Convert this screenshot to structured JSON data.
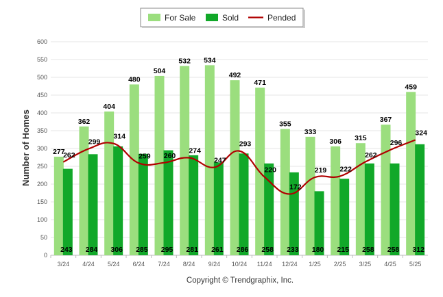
{
  "chart_data": {
    "type": "bar",
    "categories": [
      "3/24",
      "4/24",
      "5/24",
      "6/24",
      "7/24",
      "8/24",
      "9/24",
      "10/24",
      "11/24",
      "12/24",
      "1/25",
      "2/25",
      "3/25",
      "4/25",
      "5/25"
    ],
    "series": [
      {
        "name": "For Sale",
        "type": "bar",
        "color": "#9bde7e",
        "values": [
          277,
          362,
          404,
          480,
          504,
          532,
          534,
          492,
          471,
          355,
          333,
          306,
          315,
          367,
          459
        ]
      },
      {
        "name": "Sold",
        "type": "bar",
        "color": "#11a829",
        "values": [
          243,
          284,
          306,
          285,
          295,
          281,
          261,
          286,
          258,
          233,
          180,
          215,
          258,
          258,
          312
        ]
      },
      {
        "name": "Pended",
        "type": "line",
        "color": "#b00000",
        "values": [
          262,
          299,
          314,
          259,
          260,
          274,
          247,
          293,
          220,
          172,
          219,
          222,
          262,
          296,
          324
        ]
      }
    ],
    "ylabel": "Number of Homes",
    "xlabel": "",
    "ylim": [
      0,
      600
    ],
    "yticks": [
      0,
      50,
      100,
      150,
      200,
      250,
      300,
      350,
      400,
      450,
      500,
      550,
      600
    ],
    "grid": true,
    "legend_position": "top-center"
  },
  "credit": "Copyright © Trendgraphix, Inc."
}
